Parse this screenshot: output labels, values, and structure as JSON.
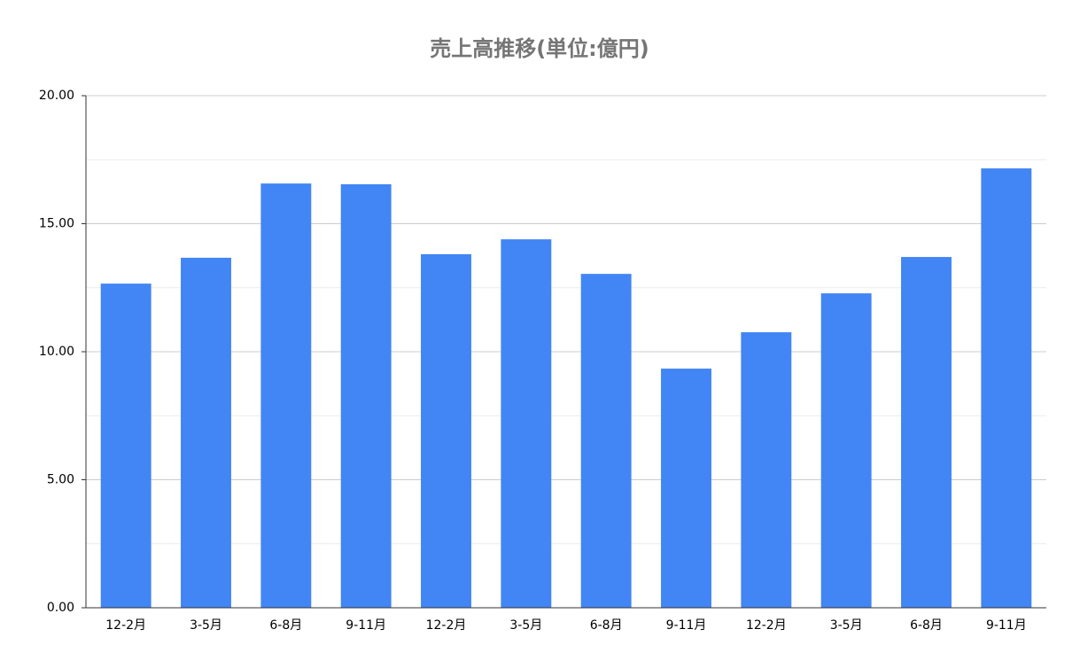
{
  "chart_data": {
    "type": "bar",
    "title": "売上高推移(単位:億円)",
    "categories": [
      "12-2月",
      "3-5月",
      "6-8月",
      "9-11月",
      "12-2月",
      "3-5月",
      "6-8月",
      "9-11月",
      "12-2月",
      "3-5月",
      "6-8月",
      "9-11月"
    ],
    "values": [
      12.66,
      13.67,
      16.57,
      16.54,
      13.81,
      14.39,
      13.04,
      9.34,
      10.76,
      12.28,
      13.7,
      17.16
    ],
    "color": "#4285f4",
    "ylim": [
      0,
      20
    ],
    "yticks": [
      {
        "value": 0,
        "label": "0.00"
      },
      {
        "value": 5,
        "label": "5.00"
      },
      {
        "value": 10,
        "label": "10.00"
      },
      {
        "value": 15,
        "label": "15.00"
      },
      {
        "value": 20,
        "label": "20.00"
      }
    ],
    "minor_yticks": [
      2.5,
      7.5,
      12.5,
      17.5
    ],
    "grid": true
  }
}
